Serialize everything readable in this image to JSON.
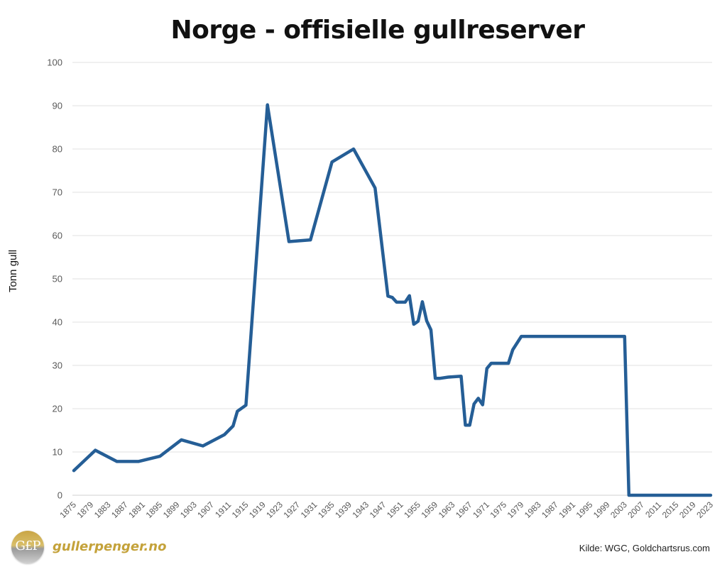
{
  "chart_data": {
    "type": "line",
    "title": "Norge - offisielle gullreserver",
    "xlabel": "",
    "ylabel": "Tonn gull",
    "ylim": [
      0,
      100
    ],
    "yticks": [
      0,
      10,
      20,
      30,
      40,
      50,
      60,
      70,
      80,
      90,
      100
    ],
    "xlim": [
      1875,
      2023
    ],
    "xticks": [
      1875,
      1879,
      1883,
      1887,
      1891,
      1895,
      1899,
      1903,
      1907,
      1911,
      1915,
      1919,
      1923,
      1927,
      1931,
      1935,
      1939,
      1943,
      1947,
      1951,
      1955,
      1959,
      1963,
      1967,
      1971,
      1975,
      1979,
      1983,
      1987,
      1991,
      1995,
      1999,
      2003,
      2007,
      2011,
      2015,
      2019,
      2023
    ],
    "grid": true,
    "legend": "none",
    "color": "#255E96",
    "series": [
      {
        "name": "Tonn gull",
        "x": [
          1875,
          1880,
          1885,
          1890,
          1895,
          1900,
          1905,
          1910,
          1912,
          1913,
          1915,
          1920,
          1925,
          1930,
          1935,
          1940,
          1945,
          1948,
          1949,
          1950,
          1952,
          1953,
          1954,
          1955,
          1956,
          1957,
          1958,
          1959,
          1960,
          1962,
          1965,
          1966,
          1967,
          1968,
          1969,
          1970,
          1971,
          1972,
          1976,
          1977,
          1979,
          2003,
          2004,
          2023
        ],
        "values": [
          5.7,
          10.4,
          7.8,
          7.8,
          9.0,
          12.8,
          11.4,
          14.0,
          16.0,
          19.4,
          20.8,
          90.2,
          58.6,
          59.0,
          77.0,
          80.0,
          71.0,
          46.0,
          45.7,
          44.6,
          44.6,
          46.1,
          39.5,
          40.2,
          44.7,
          40.3,
          38.2,
          27.0,
          27.0,
          27.3,
          27.5,
          16.2,
          16.2,
          21.1,
          22.4,
          20.9,
          29.3,
          30.5,
          30.5,
          33.6,
          36.7,
          36.7,
          0,
          0
        ]
      }
    ]
  },
  "header": {
    "title": "Norge - offisielle gullreserver"
  },
  "axis": {
    "ylabel": "Tonn gull"
  },
  "footer": {
    "logo_text": "G£P",
    "brand": "gullerpenger.no",
    "source": "Kilde: WGC, Goldchartsrus.com"
  }
}
